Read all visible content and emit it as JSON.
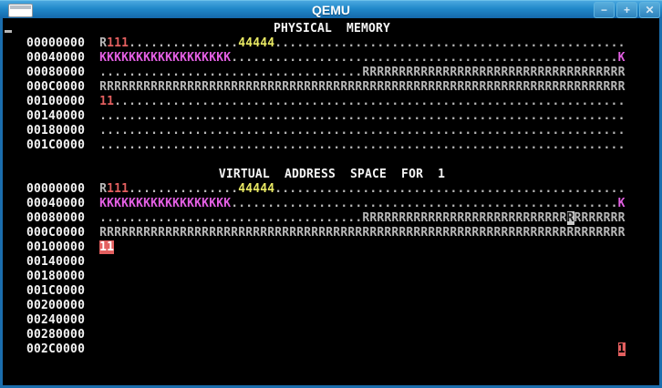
{
  "window": {
    "title": "QEMU",
    "buttons": [
      {
        "name": "minimize",
        "glyph": "−"
      },
      {
        "name": "maximize",
        "glyph": "+"
      },
      {
        "name": "close",
        "glyph": "✕"
      }
    ]
  },
  "colors": {
    "term_gray": "#b8b8b8",
    "term_white": "#f4f4f4",
    "term_red": "#e35f5f",
    "term_yellow": "#eaea64",
    "term_magenta": "#e35fe3",
    "cursor_bg": "#c9c9c9",
    "titlebar_blue": "#2088c9",
    "border_blue": "#1a6dad",
    "screen_bg": "#000000"
  },
  "screen": {
    "cursor": {
      "row": 0,
      "col": 0,
      "style": "underscore"
    },
    "lines": [
      {
        "type": "title",
        "text": "PHYSICAL  MEMORY"
      },
      {
        "type": "row",
        "address": "00000000",
        "map": [
          [
            "R",
            1,
            "gray"
          ],
          [
            "1",
            3,
            "red"
          ],
          [
            ".",
            15,
            "gray"
          ],
          [
            "4",
            5,
            "yellow"
          ],
          [
            ".",
            48,
            "gray"
          ]
        ]
      },
      {
        "type": "row",
        "address": "00040000",
        "map": [
          [
            "K",
            18,
            "magenta"
          ],
          [
            ".",
            53,
            "gray"
          ],
          [
            "K",
            1,
            "magenta"
          ]
        ]
      },
      {
        "type": "row",
        "address": "00080000",
        "map": [
          [
            ".",
            36,
            "gray"
          ],
          [
            "R",
            36,
            "gray"
          ]
        ]
      },
      {
        "type": "row",
        "address": "000C0000",
        "map": [
          [
            "R",
            72,
            "gray"
          ]
        ]
      },
      {
        "type": "row",
        "address": "00100000",
        "map": [
          [
            "1",
            2,
            "red"
          ],
          [
            ".",
            70,
            "gray"
          ]
        ]
      },
      {
        "type": "row",
        "address": "00140000",
        "map": [
          [
            ".",
            72,
            "gray"
          ]
        ]
      },
      {
        "type": "row",
        "address": "00180000",
        "map": [
          [
            ".",
            72,
            "gray"
          ]
        ]
      },
      {
        "type": "row",
        "address": "001C0000",
        "map": [
          [
            ".",
            72,
            "gray"
          ]
        ]
      },
      {
        "type": "blank"
      },
      {
        "type": "title",
        "text": "VIRTUAL  ADDRESS  SPACE  FOR  1"
      },
      {
        "type": "row",
        "address": "00000000",
        "map": [
          [
            "R",
            1,
            "gray"
          ],
          [
            "1",
            3,
            "red"
          ],
          [
            ".",
            15,
            "gray"
          ],
          [
            "4",
            5,
            "yellow"
          ],
          [
            ".",
            48,
            "gray"
          ]
        ]
      },
      {
        "type": "row",
        "address": "00040000",
        "map": [
          [
            "K",
            18,
            "magenta"
          ],
          [
            ".",
            53,
            "gray"
          ],
          [
            "K",
            1,
            "magenta"
          ]
        ]
      },
      {
        "type": "row",
        "address": "00080000",
        "map": [
          [
            ".",
            36,
            "gray"
          ],
          [
            "R",
            28,
            "gray"
          ],
          [
            "R",
            1,
            "cursor"
          ],
          [
            "R",
            7,
            "gray"
          ]
        ]
      },
      {
        "type": "row",
        "address": "000C0000",
        "map": [
          [
            "R",
            72,
            "gray"
          ]
        ]
      },
      {
        "type": "row",
        "address": "00100000",
        "map": [
          [
            "1",
            2,
            "inv-red"
          ]
        ]
      },
      {
        "type": "row",
        "address": "00140000",
        "map": []
      },
      {
        "type": "row",
        "address": "00180000",
        "map": []
      },
      {
        "type": "row",
        "address": "001C0000",
        "map": []
      },
      {
        "type": "row",
        "address": "00200000",
        "map": []
      },
      {
        "type": "row",
        "address": "00240000",
        "map": []
      },
      {
        "type": "row",
        "address": "00280000",
        "map": []
      },
      {
        "type": "row",
        "address": "002C0000",
        "map": [
          [
            " ",
            71,
            "plain"
          ],
          [
            "1",
            1,
            "inv-red-black"
          ]
        ]
      },
      {
        "type": "blank"
      },
      {
        "type": "blank"
      }
    ]
  }
}
